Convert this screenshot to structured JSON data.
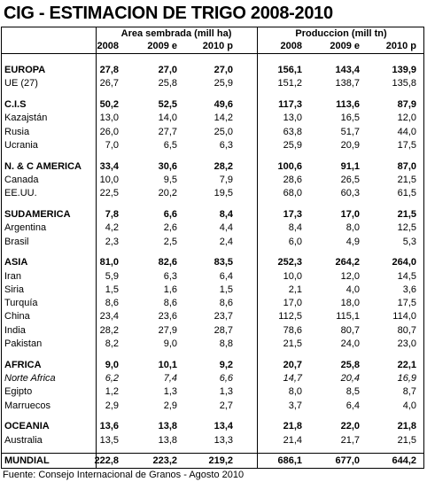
{
  "header": {
    "title": "CIG - ESTIMACION DE TRIGO 2008-2010"
  },
  "table": {
    "groups": [
      "Area sembrada (mill ha)",
      "Produccion (mill tn)"
    ],
    "years": [
      "2008",
      "2009 e",
      "2010 p",
      "2008",
      "2009 e",
      "2010 p"
    ],
    "sections": [
      {
        "rows": [
          {
            "style": "bold",
            "cells": [
              "EUROPA",
              "27,8",
              "27,0",
              "27,0",
              "156,1",
              "143,4",
              "139,9"
            ]
          },
          {
            "cells": [
              "UE (27)",
              "26,7",
              "25,8",
              "25,9",
              "151,2",
              "138,7",
              "135,8"
            ]
          }
        ]
      },
      {
        "rows": [
          {
            "style": "bold",
            "cells": [
              "C.I.S",
              "50,2",
              "52,5",
              "49,6",
              "117,3",
              "113,6",
              "87,9"
            ]
          },
          {
            "cells": [
              "Kazajstán",
              "13,0",
              "14,0",
              "14,2",
              "13,0",
              "16,5",
              "12,0"
            ]
          },
          {
            "cells": [
              "Rusia",
              "26,0",
              "27,7",
              "25,0",
              "63,8",
              "51,7",
              "44,0"
            ]
          },
          {
            "cells": [
              "Ucrania",
              "7,0",
              "6,5",
              "6,3",
              "25,9",
              "20,9",
              "17,5"
            ]
          }
        ]
      },
      {
        "rows": [
          {
            "style": "bold",
            "cells": [
              "N. & C AMERICA",
              "33,4",
              "30,6",
              "28,2",
              "100,6",
              "91,1",
              "87,0"
            ]
          },
          {
            "cells": [
              "Canada",
              "10,0",
              "9,5",
              "7,9",
              "28,6",
              "26,5",
              "21,5"
            ]
          },
          {
            "cells": [
              "EE.UU.",
              "22,5",
              "20,2",
              "19,5",
              "68,0",
              "60,3",
              "61,5"
            ]
          }
        ]
      },
      {
        "rows": [
          {
            "style": "bold",
            "cells": [
              "SUDAMERICA",
              "7,8",
              "6,6",
              "8,4",
              "17,3",
              "17,0",
              "21,5"
            ]
          },
          {
            "cells": [
              "Argentina",
              "4,2",
              "2,6",
              "4,4",
              "8,4",
              "8,0",
              "12,5"
            ]
          },
          {
            "cells": [
              "Brasil",
              "2,3",
              "2,5",
              "2,4",
              "6,0",
              "4,9",
              "5,3"
            ]
          }
        ]
      },
      {
        "rows": [
          {
            "style": "bold",
            "cells": [
              "ASIA",
              "81,0",
              "82,6",
              "83,5",
              "252,3",
              "264,2",
              "264,0"
            ]
          },
          {
            "cells": [
              "Iran",
              "5,9",
              "6,3",
              "6,4",
              "10,0",
              "12,0",
              "14,5"
            ]
          },
          {
            "cells": [
              "Siria",
              "1,5",
              "1,6",
              "1,5",
              "2,1",
              "4,0",
              "3,6"
            ]
          },
          {
            "cells": [
              "Turquía",
              "8,6",
              "8,6",
              "8,6",
              "17,0",
              "18,0",
              "17,5"
            ]
          },
          {
            "cells": [
              "China",
              "23,4",
              "23,6",
              "23,7",
              "112,5",
              "115,1",
              "114,0"
            ]
          },
          {
            "cells": [
              "India",
              "28,2",
              "27,9",
              "28,7",
              "78,6",
              "80,7",
              "80,7"
            ]
          },
          {
            "cells": [
              "Pakistan",
              "8,2",
              "9,0",
              "8,8",
              "21,5",
              "24,0",
              "23,0"
            ]
          }
        ]
      },
      {
        "rows": [
          {
            "style": "bold",
            "cells": [
              "AFRICA",
              "9,0",
              "10,1",
              "9,2",
              "20,7",
              "25,8",
              "22,1"
            ]
          },
          {
            "style": "italic",
            "cells": [
              "Norte Africa",
              "6,2",
              "7,4",
              "6,6",
              "14,7",
              "20,4",
              "16,9"
            ]
          },
          {
            "cells": [
              "Egipto",
              "1,2",
              "1,3",
              "1,3",
              "8,0",
              "8,5",
              "8,7"
            ]
          },
          {
            "cells": [
              "Marruecos",
              "2,9",
              "2,9",
              "2,7",
              "3,7",
              "6,4",
              "4,0"
            ]
          }
        ]
      },
      {
        "rows": [
          {
            "style": "bold",
            "cells": [
              "OCEANIA",
              "13,6",
              "13,8",
              "13,4",
              "21,8",
              "22,0",
              "21,8"
            ]
          },
          {
            "cells": [
              "Australia",
              "13,5",
              "13,8",
              "13,3",
              "21,4",
              "21,7",
              "21,5"
            ]
          }
        ]
      },
      {
        "total": true,
        "rows": [
          {
            "style": "bold",
            "cells": [
              "MUNDIAL",
              "222,8",
              "223,2",
              "219,2",
              "686,1",
              "677,0",
              "644,2"
            ]
          }
        ]
      }
    ]
  },
  "footer": "Fuente: Consejo Internacional de Granos - Agosto 2010"
}
